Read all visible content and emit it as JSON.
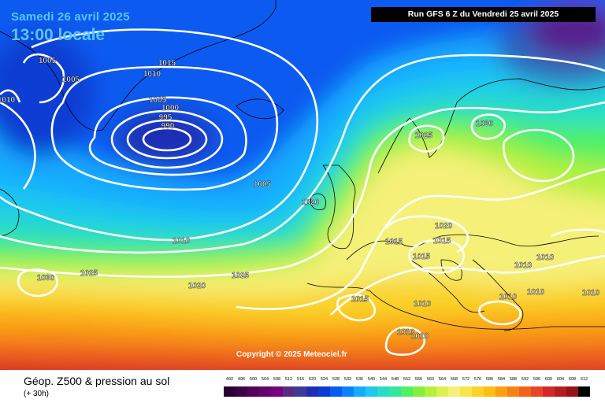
{
  "header": {
    "date": "Samedi 26 avril 2025",
    "time": "13:00 locale",
    "run": "Run GFS 6 Z du Vendredi 25 avril 2025"
  },
  "copyright": "Copyright © 2025 Meteociel.fr",
  "footer": {
    "field": "Géop. Z500 & pression au sol",
    "lead": "(+ 30h)"
  },
  "legend_scale": [
    {
      "label": "492",
      "color": "#2a0030"
    },
    {
      "label": "496",
      "color": "#3d0045"
    },
    {
      "label": "500",
      "color": "#52005a"
    },
    {
      "label": "504",
      "color": "#66006e"
    },
    {
      "label": "508",
      "color": "#7a0082"
    },
    {
      "label": "512",
      "color": "#5a2a82"
    },
    {
      "label": "516",
      "color": "#3c3c96"
    },
    {
      "label": "520",
      "color": "#1e2eb4"
    },
    {
      "label": "524",
      "color": "#0a3cd2"
    },
    {
      "label": "528",
      "color": "#0a5af0"
    },
    {
      "label": "532",
      "color": "#0a82ff"
    },
    {
      "label": "536",
      "color": "#14aaff"
    },
    {
      "label": "540",
      "color": "#1ec8f0"
    },
    {
      "label": "544",
      "color": "#28dcc8"
    },
    {
      "label": "548",
      "color": "#32e6a0"
    },
    {
      "label": "552",
      "color": "#50f064"
    },
    {
      "label": "556",
      "color": "#82f03c"
    },
    {
      "label": "560",
      "color": "#b4f03c"
    },
    {
      "label": "564",
      "color": "#dcf050"
    },
    {
      "label": "568",
      "color": "#f5f078"
    },
    {
      "label": "572",
      "color": "#f8e646"
    },
    {
      "label": "576",
      "color": "#fad228"
    },
    {
      "label": "580",
      "color": "#fabe14"
    },
    {
      "label": "584",
      "color": "#faa014"
    },
    {
      "label": "588",
      "color": "#f58214"
    },
    {
      "label": "592",
      "color": "#f0641e"
    },
    {
      "label": "596",
      "color": "#e64628"
    },
    {
      "label": "600",
      "color": "#d22828"
    },
    {
      "label": "604",
      "color": "#b41e1e"
    },
    {
      "label": "608",
      "color": "#961414"
    },
    {
      "label": "612",
      "color": "#000000"
    }
  ],
  "isobar_labels": [
    "1005",
    "1005",
    "1010",
    "1015",
    "1010",
    "1005",
    "1000",
    "995",
    "990",
    "1005",
    "1020",
    "1010",
    "1030",
    "1025",
    "1025",
    "1020",
    "1025",
    "1030",
    "1020",
    "1015",
    "1015",
    "1015",
    "1015",
    "1010",
    "1010",
    "1010",
    "1010",
    "1010",
    "1010",
    "1010",
    "1010"
  ]
}
